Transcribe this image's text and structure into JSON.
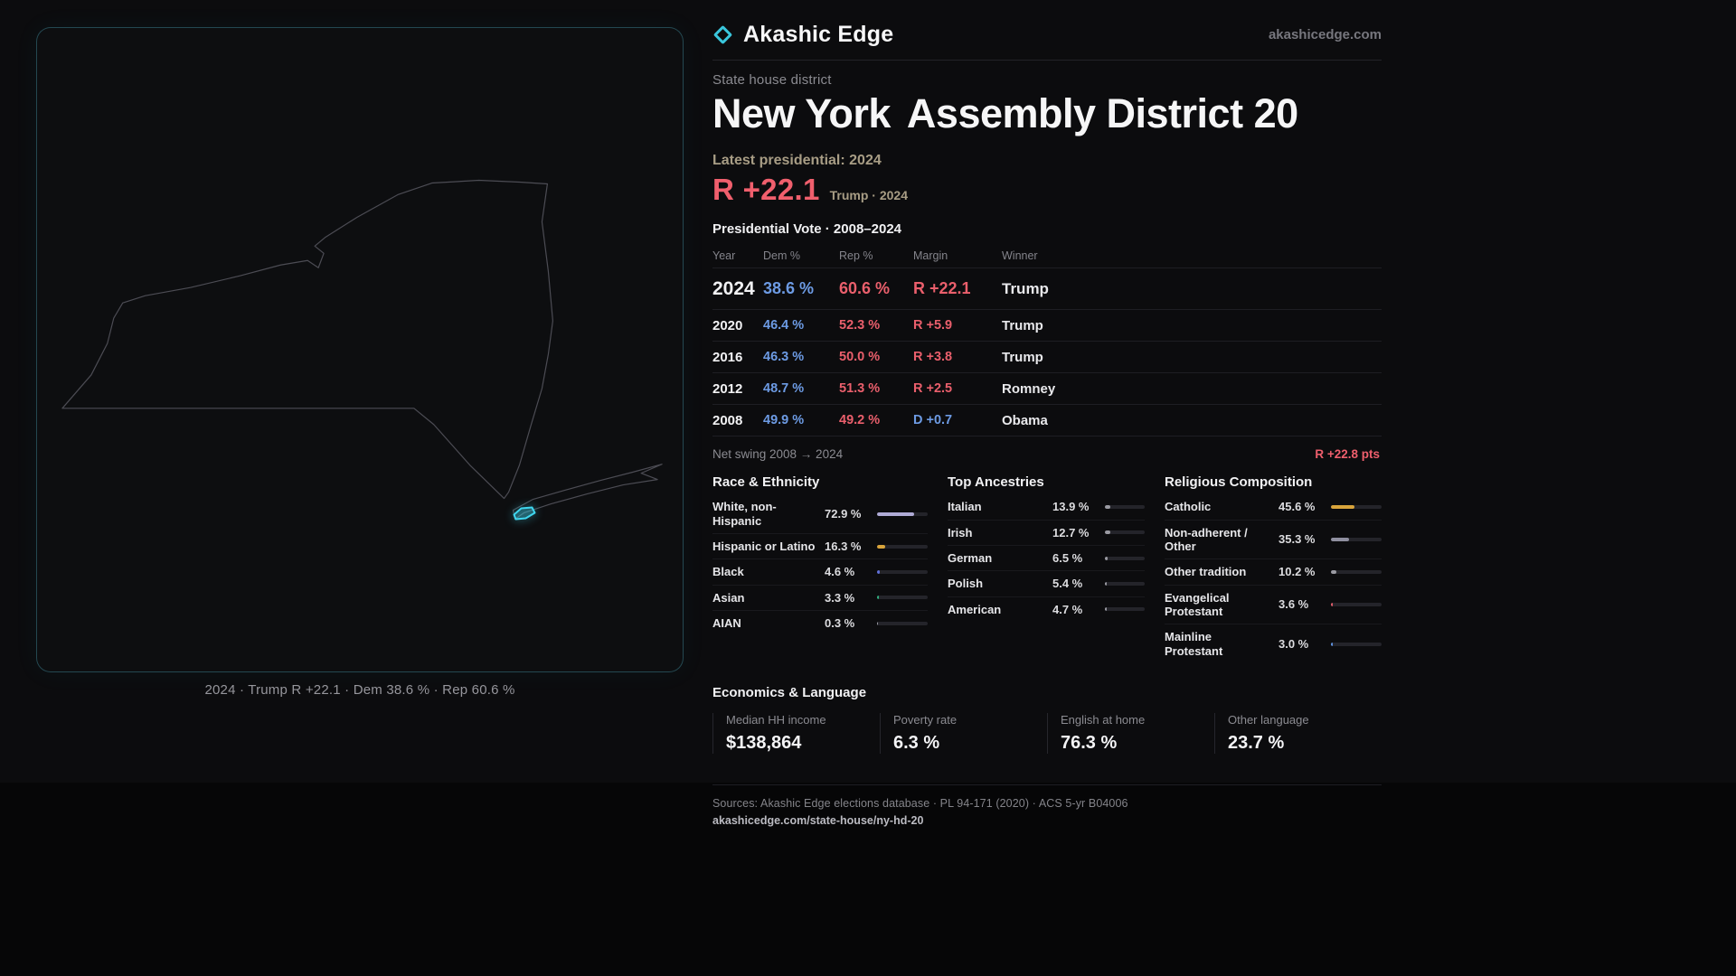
{
  "brand": {
    "name": "Akashic Edge",
    "site": "akashicedge.com"
  },
  "map": {
    "caption": "2024 · Trump R +22.1 · Dem 38.6 % · Rep 60.6 %",
    "district_color": "#3fd6ef"
  },
  "header": {
    "kicker": "State house district",
    "state": "New York",
    "seat": "Assembly District 20",
    "latest_label": "Latest presidential: 2024",
    "latest_value": "R +22.1",
    "latest_detail": "Trump · 2024"
  },
  "vote": {
    "title": "Presidential Vote · 2008–2024",
    "columns": [
      "Year",
      "Dem %",
      "Rep %",
      "Margin",
      "Winner"
    ],
    "rows": [
      {
        "year": "2024",
        "dem": "38.6 %",
        "rep": "60.6 %",
        "margin": "R +22.1",
        "winner": "Trump"
      },
      {
        "year": "2020",
        "dem": "46.4 %",
        "rep": "52.3 %",
        "margin": "R +5.9",
        "winner": "Trump"
      },
      {
        "year": "2016",
        "dem": "46.3 %",
        "rep": "50.0 %",
        "margin": "R +3.8",
        "winner": "Trump"
      },
      {
        "year": "2012",
        "dem": "48.7 %",
        "rep": "51.3 %",
        "margin": "R +2.5",
        "winner": "Romney"
      },
      {
        "year": "2008",
        "dem": "49.9 %",
        "rep": "49.2 %",
        "margin": "D +0.7",
        "winner": "Obama"
      }
    ],
    "swing_label": "Net swing 2008 → 2024",
    "swing_value": "R +22.8 pts"
  },
  "demo": {
    "race": {
      "title": "Race & Ethnicity",
      "items": [
        {
          "label": "White, non-Hispanic",
          "value": "72.9 %",
          "pct": 72.9,
          "color": "#b0abd6"
        },
        {
          "label": "Hispanic or Latino",
          "value": "16.3 %",
          "pct": 16.3,
          "color": "#d9a43b"
        },
        {
          "label": "Black",
          "value": "4.6 %",
          "pct": 4.6,
          "color": "#5f6fd8"
        },
        {
          "label": "Asian",
          "value": "3.3 %",
          "pct": 3.3,
          "color": "#2fae7e"
        },
        {
          "label": "AIAN",
          "value": "0.3 %",
          "pct": 0.3,
          "color": "#9a9aa2"
        }
      ]
    },
    "ancestry": {
      "title": "Top Ancestries",
      "items": [
        {
          "label": "Italian",
          "value": "13.9 %",
          "pct": 13.9,
          "color": "#9a9aa2"
        },
        {
          "label": "Irish",
          "value": "12.7 %",
          "pct": 12.7,
          "color": "#9a9aa2"
        },
        {
          "label": "German",
          "value": "6.5 %",
          "pct": 6.5,
          "color": "#9a9aa2"
        },
        {
          "label": "Polish",
          "value": "5.4 %",
          "pct": 5.4,
          "color": "#9a9aa2"
        },
        {
          "label": "American",
          "value": "4.7 %",
          "pct": 4.7,
          "color": "#9a9aa2"
        }
      ]
    },
    "religion": {
      "title": "Religious Composition",
      "items": [
        {
          "label": "Catholic",
          "value": "45.6 %",
          "pct": 45.6,
          "color": "#d9a43b"
        },
        {
          "label": "Non-adherent / Other",
          "value": "35.3 %",
          "pct": 35.3,
          "color": "#8f8fa0"
        },
        {
          "label": "Other tradition",
          "value": "10.2 %",
          "pct": 10.2,
          "color": "#9a9aa2"
        },
        {
          "label": "Evangelical Protestant",
          "value": "3.6 %",
          "pct": 3.6,
          "color": "#e05c6a"
        },
        {
          "label": "Mainline Protestant",
          "value": "3.0 %",
          "pct": 3.0,
          "color": "#5f93e0"
        }
      ]
    }
  },
  "econ": {
    "title": "Economics & Language",
    "stats": [
      {
        "label": "Median HH income",
        "value": "$138,864"
      },
      {
        "label": "Poverty rate",
        "value": "6.3 %"
      },
      {
        "label": "English at home",
        "value": "76.3 %"
      },
      {
        "label": "Other language",
        "value": "23.7 %"
      }
    ]
  },
  "footer": {
    "sources": "Sources: Akashic Edge elections database · PL 94-171 (2020) · ACS 5-yr B04006",
    "permalink": "akashicedge.com/state-house/ny-hd-20"
  }
}
